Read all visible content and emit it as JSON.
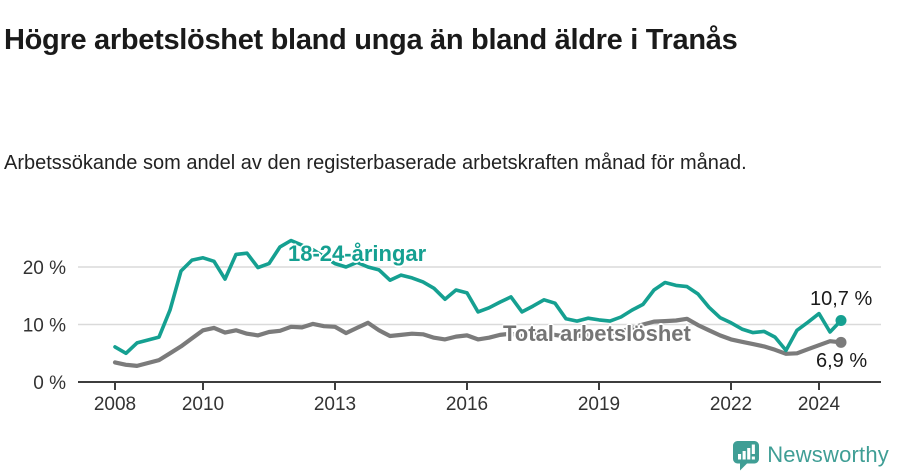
{
  "header": {
    "title": "Högre arbetslöshet bland unga än bland äldre i Tranås",
    "subtitle": "Arbetssökande som andel av den registerbaserade arbetskraften månad för månad."
  },
  "chart_data": {
    "type": "line",
    "title": "Högre arbetslöshet bland unga än bland äldre i Tranås",
    "xlabel": "",
    "ylabel": "Arbetssökande som andel av den registerbaserade arbetskraften",
    "x_unit": "decimal_year",
    "xlim": [
      2007.15,
      2025.4
    ],
    "ylim": [
      0,
      26.5
    ],
    "grid": "horizontal",
    "legend_position": "inline-labels",
    "x": [
      2008,
      2008.25,
      2008.5,
      2008.75,
      2009,
      2009.25,
      2009.5,
      2009.75,
      2010,
      2010.25,
      2010.5,
      2010.75,
      2011,
      2011.25,
      2011.5,
      2011.75,
      2012,
      2012.25,
      2012.5,
      2012.75,
      2013,
      2013.25,
      2013.5,
      2013.75,
      2014,
      2014.25,
      2014.5,
      2014.75,
      2015,
      2015.25,
      2015.5,
      2015.75,
      2016,
      2016.25,
      2016.5,
      2016.75,
      2017,
      2017.25,
      2017.5,
      2017.75,
      2018,
      2018.25,
      2018.5,
      2018.75,
      2019,
      2019.25,
      2019.5,
      2019.75,
      2020,
      2020.25,
      2020.5,
      2020.75,
      2021,
      2021.25,
      2021.5,
      2021.75,
      2022,
      2022.25,
      2022.5,
      2022.75,
      2023,
      2023.25,
      2023.5,
      2023.75,
      2024,
      2024.25,
      2024.5
    ],
    "series": [
      {
        "name": "18-24-åringar",
        "color": "#15a091",
        "end_label": "10,7 %",
        "end_value": 10.7,
        "values": [
          6.1,
          5.0,
          6.8,
          7.3,
          7.8,
          12.5,
          19.3,
          21.2,
          21.6,
          21.0,
          17.9,
          22.2,
          22.4,
          19.9,
          20.6,
          23.5,
          24.6,
          23.8,
          23.0,
          21.8,
          20.6,
          20.0,
          20.8,
          20.0,
          19.5,
          17.7,
          18.6,
          18.1,
          17.4,
          16.3,
          14.4,
          16.0,
          15.5,
          12.2,
          12.9,
          13.9,
          14.8,
          12.2,
          13.2,
          14.3,
          13.7,
          11.0,
          10.6,
          11.1,
          10.8,
          10.6,
          11.3,
          12.5,
          13.5,
          16.0,
          17.3,
          16.8,
          16.6,
          15.3,
          13.0,
          11.2,
          10.3,
          9.2,
          8.6,
          8.8,
          7.8,
          5.5,
          9.0,
          10.4,
          11.9,
          8.7,
          10.7
        ]
      },
      {
        "name": "Total arbetslöshet",
        "color": "#7b7b7b",
        "end_label": "6,9 %",
        "end_value": 6.9,
        "values": [
          3.4,
          3.0,
          2.8,
          3.3,
          3.8,
          5.0,
          6.2,
          7.6,
          9.0,
          9.4,
          8.6,
          9.0,
          8.4,
          8.1,
          8.7,
          8.9,
          9.6,
          9.5,
          10.1,
          9.7,
          9.6,
          8.5,
          9.4,
          10.3,
          9.0,
          8.0,
          8.2,
          8.4,
          8.3,
          7.7,
          7.4,
          7.9,
          8.1,
          7.4,
          7.7,
          8.2,
          8.4,
          8.0,
          8.2,
          8.3,
          8.2,
          7.9,
          8.0,
          8.2,
          8.3,
          8.4,
          8.8,
          9.4,
          10.0,
          10.5,
          10.6,
          10.7,
          11.0,
          9.9,
          9.0,
          8.1,
          7.4,
          7.0,
          6.6,
          6.2,
          5.6,
          4.9,
          5.0,
          5.7,
          6.4,
          7.1,
          6.9
        ]
      }
    ],
    "x_ticks": [
      {
        "value": 2008,
        "label": "2008"
      },
      {
        "value": 2010,
        "label": "2010"
      },
      {
        "value": 2013,
        "label": "2013"
      },
      {
        "value": 2016,
        "label": "2016"
      },
      {
        "value": 2019,
        "label": "2019"
      },
      {
        "value": 2022,
        "label": "2022"
      },
      {
        "value": 2024,
        "label": "2024"
      }
    ],
    "y_ticks": [
      {
        "value": 0,
        "label": "0 %"
      },
      {
        "value": 10,
        "label": "10 %"
      },
      {
        "value": 20,
        "label": "20 %"
      }
    ],
    "colors": {
      "grid": "#dadada",
      "axis": "#3d3d3d",
      "tick_text": "#333333"
    }
  },
  "footer": {
    "brand": "Newsworthy",
    "brand_color": "#3f9e95",
    "logo_icon": "bar-chart-speech-bubble-icon"
  }
}
